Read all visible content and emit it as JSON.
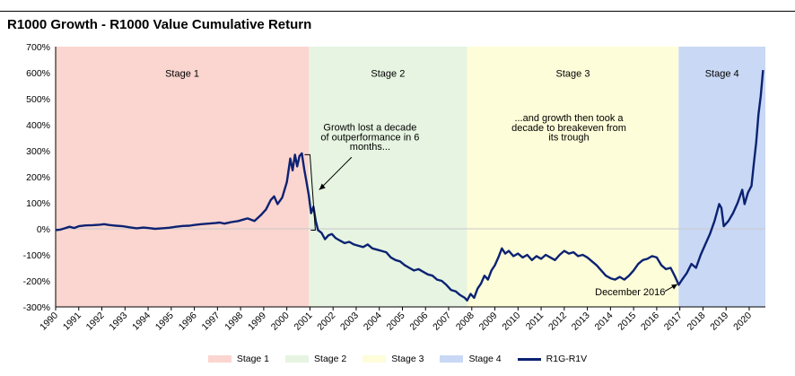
{
  "chart_data": {
    "type": "area",
    "title": "R1000 Growth - R1000 Value Cumulative Return",
    "xlabel": "",
    "ylabel": "",
    "ylim": [
      -300,
      700
    ],
    "yticks": [
      -300,
      -200,
      -100,
      0,
      100,
      200,
      300,
      400,
      500,
      600,
      700
    ],
    "ytick_labels": [
      "-300%",
      "-200%",
      "-100%",
      "0%",
      "100%",
      "200%",
      "300%",
      "400%",
      "500%",
      "600%",
      "700%"
    ],
    "xlim": [
      1990,
      2020.7
    ],
    "xticks": [
      1990,
      1991,
      1992,
      1993,
      1994,
      1995,
      1996,
      1997,
      1998,
      1999,
      2000,
      2001,
      2002,
      2003,
      2004,
      2005,
      2006,
      2007,
      2008,
      2009,
      2010,
      2011,
      2012,
      2013,
      2014,
      2015,
      2016,
      2017,
      2018,
      2019,
      2020
    ],
    "stages": [
      {
        "name": "Stage 1",
        "start": 1990,
        "end": 2000.95,
        "color": "#fbd5cf"
      },
      {
        "name": "Stage 2",
        "start": 2000.95,
        "end": 2007.8,
        "color": "#e6f4e1"
      },
      {
        "name": "Stage 3",
        "start": 2007.8,
        "end": 2016.95,
        "color": "#fdfdd9"
      },
      {
        "name": "Stage 4",
        "start": 2016.95,
        "end": 2020.7,
        "color": "#c9d8f5"
      }
    ],
    "series": [
      {
        "name": "R1G-R1V",
        "color": "#0b2272",
        "points": [
          [
            1990.0,
            -5
          ],
          [
            1990.2,
            -3
          ],
          [
            1990.4,
            2
          ],
          [
            1990.6,
            8
          ],
          [
            1990.8,
            3
          ],
          [
            1991.0,
            10
          ],
          [
            1991.3,
            13
          ],
          [
            1991.6,
            14
          ],
          [
            1991.9,
            16
          ],
          [
            1992.1,
            18
          ],
          [
            1992.3,
            15
          ],
          [
            1992.6,
            12
          ],
          [
            1992.9,
            10
          ],
          [
            1993.2,
            6
          ],
          [
            1993.5,
            2
          ],
          [
            1993.8,
            5
          ],
          [
            1994.0,
            3
          ],
          [
            1994.3,
            0
          ],
          [
            1994.6,
            2
          ],
          [
            1994.9,
            4
          ],
          [
            1995.2,
            8
          ],
          [
            1995.5,
            11
          ],
          [
            1995.8,
            12
          ],
          [
            1996.0,
            15
          ],
          [
            1996.3,
            18
          ],
          [
            1996.6,
            20
          ],
          [
            1996.9,
            22
          ],
          [
            1997.1,
            24
          ],
          [
            1997.3,
            20
          ],
          [
            1997.6,
            26
          ],
          [
            1997.9,
            30
          ],
          [
            1998.1,
            35
          ],
          [
            1998.3,
            40
          ],
          [
            1998.6,
            30
          ],
          [
            1998.9,
            55
          ],
          [
            1999.1,
            75
          ],
          [
            1999.3,
            110
          ],
          [
            1999.45,
            125
          ],
          [
            1999.6,
            95
          ],
          [
            1999.8,
            120
          ],
          [
            2000.0,
            180
          ],
          [
            2000.15,
            270
          ],
          [
            2000.25,
            225
          ],
          [
            2000.35,
            285
          ],
          [
            2000.45,
            240
          ],
          [
            2000.55,
            280
          ],
          [
            2000.65,
            290
          ],
          [
            2000.75,
            230
          ],
          [
            2000.85,
            180
          ],
          [
            2000.95,
            130
          ],
          [
            2001.05,
            60
          ],
          [
            2001.15,
            85
          ],
          [
            2001.25,
            30
          ],
          [
            2001.35,
            -5
          ],
          [
            2001.5,
            -15
          ],
          [
            2001.65,
            -40
          ],
          [
            2001.8,
            -25
          ],
          [
            2001.95,
            -20
          ],
          [
            2002.1,
            -35
          ],
          [
            2002.3,
            -45
          ],
          [
            2002.5,
            -55
          ],
          [
            2002.7,
            -50
          ],
          [
            2002.9,
            -60
          ],
          [
            2003.1,
            -65
          ],
          [
            2003.3,
            -70
          ],
          [
            2003.5,
            -60
          ],
          [
            2003.7,
            -75
          ],
          [
            2003.9,
            -80
          ],
          [
            2004.1,
            -85
          ],
          [
            2004.3,
            -90
          ],
          [
            2004.5,
            -110
          ],
          [
            2004.7,
            -120
          ],
          [
            2004.9,
            -125
          ],
          [
            2005.1,
            -140
          ],
          [
            2005.3,
            -150
          ],
          [
            2005.5,
            -160
          ],
          [
            2005.7,
            -155
          ],
          [
            2005.9,
            -165
          ],
          [
            2006.1,
            -175
          ],
          [
            2006.3,
            -180
          ],
          [
            2006.5,
            -195
          ],
          [
            2006.7,
            -200
          ],
          [
            2006.9,
            -215
          ],
          [
            2007.1,
            -235
          ],
          [
            2007.3,
            -240
          ],
          [
            2007.5,
            -255
          ],
          [
            2007.7,
            -265
          ],
          [
            2007.8,
            -275
          ],
          [
            2007.95,
            -250
          ],
          [
            2008.1,
            -265
          ],
          [
            2008.25,
            -230
          ],
          [
            2008.4,
            -210
          ],
          [
            2008.55,
            -180
          ],
          [
            2008.7,
            -195
          ],
          [
            2008.85,
            -160
          ],
          [
            2009.0,
            -140
          ],
          [
            2009.15,
            -110
          ],
          [
            2009.3,
            -75
          ],
          [
            2009.45,
            -95
          ],
          [
            2009.6,
            -85
          ],
          [
            2009.8,
            -105
          ],
          [
            2010.0,
            -95
          ],
          [
            2010.2,
            -110
          ],
          [
            2010.4,
            -100
          ],
          [
            2010.6,
            -120
          ],
          [
            2010.8,
            -105
          ],
          [
            2011.0,
            -115
          ],
          [
            2011.2,
            -100
          ],
          [
            2011.4,
            -110
          ],
          [
            2011.6,
            -120
          ],
          [
            2011.8,
            -100
          ],
          [
            2012.0,
            -85
          ],
          [
            2012.2,
            -95
          ],
          [
            2012.4,
            -90
          ],
          [
            2012.6,
            -105
          ],
          [
            2012.8,
            -100
          ],
          [
            2013.0,
            -110
          ],
          [
            2013.2,
            -125
          ],
          [
            2013.4,
            -140
          ],
          [
            2013.6,
            -160
          ],
          [
            2013.8,
            -180
          ],
          [
            2014.0,
            -190
          ],
          [
            2014.2,
            -195
          ],
          [
            2014.4,
            -185
          ],
          [
            2014.6,
            -195
          ],
          [
            2014.8,
            -180
          ],
          [
            2015.0,
            -160
          ],
          [
            2015.2,
            -135
          ],
          [
            2015.4,
            -120
          ],
          [
            2015.6,
            -115
          ],
          [
            2015.8,
            -105
          ],
          [
            2016.0,
            -110
          ],
          [
            2016.2,
            -140
          ],
          [
            2016.4,
            -155
          ],
          [
            2016.6,
            -150
          ],
          [
            2016.8,
            -185
          ],
          [
            2016.95,
            -215
          ],
          [
            2017.1,
            -195
          ],
          [
            2017.3,
            -170
          ],
          [
            2017.5,
            -135
          ],
          [
            2017.7,
            -150
          ],
          [
            2017.9,
            -100
          ],
          [
            2018.1,
            -60
          ],
          [
            2018.3,
            -20
          ],
          [
            2018.5,
            30
          ],
          [
            2018.7,
            95
          ],
          [
            2018.8,
            80
          ],
          [
            2018.9,
            10
          ],
          [
            2019.1,
            30
          ],
          [
            2019.3,
            60
          ],
          [
            2019.5,
            100
          ],
          [
            2019.7,
            150
          ],
          [
            2019.8,
            95
          ],
          [
            2019.95,
            140
          ],
          [
            2020.1,
            165
          ],
          [
            2020.2,
            250
          ],
          [
            2020.3,
            330
          ],
          [
            2020.4,
            440
          ],
          [
            2020.5,
            510
          ],
          [
            2020.6,
            610
          ]
        ]
      }
    ],
    "annotations": [
      {
        "lines": [
          "Growth lost a decade",
          "of outperformance in 6",
          "months..."
        ]
      },
      {
        "lines": [
          "...and growth then took a",
          "decade to breakeven from",
          "its trough"
        ]
      },
      {
        "lines": [
          "December 2016"
        ]
      }
    ],
    "legend": [
      "Stage 1",
      "Stage 2",
      "Stage 3",
      "Stage 4",
      "R1G-R1V"
    ],
    "legend_position": "bottom"
  }
}
